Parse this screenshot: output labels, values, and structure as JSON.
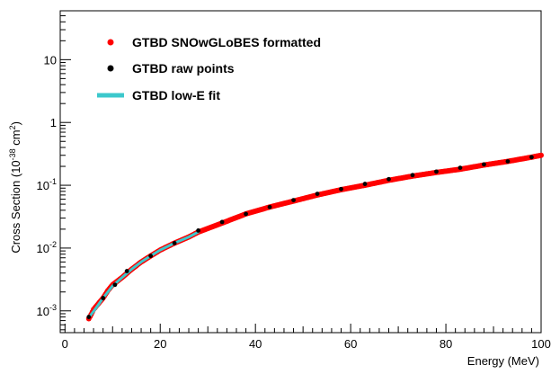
{
  "chart_data": {
    "type": "scatter",
    "title": "",
    "xlabel": "Energy (MeV)",
    "ylabel_parts": {
      "pre": "Cross Section (10",
      "exp": "-38",
      "mid": " cm",
      "exp2": "2",
      "post": ")"
    },
    "xlim": [
      -1,
      100
    ],
    "ylim": [
      0.00045,
      60
    ],
    "yscale": "log",
    "x_ticks": [
      0,
      20,
      40,
      60,
      80,
      100
    ],
    "y_ticks": [
      {
        "value": 0.001,
        "mantissa": "10",
        "exp": "-3"
      },
      {
        "value": 0.01,
        "mantissa": "10",
        "exp": "-2"
      },
      {
        "value": 0.1,
        "mantissa": "10",
        "exp": "-1"
      },
      {
        "value": 1,
        "mantissa": "1",
        "exp": ""
      },
      {
        "value": 10,
        "mantissa": "10",
        "exp": ""
      }
    ],
    "grid": false,
    "legend_position": "top-left",
    "legend": [
      {
        "label": "GTBD SNOwGLoBES formatted",
        "marker": "dot",
        "color": "#ff0000"
      },
      {
        "label": "GTBD raw points",
        "marker": "dot",
        "color": "#000000"
      },
      {
        "label": "GTBD low-E fit",
        "marker": "line",
        "color": "#3cc8cc"
      }
    ],
    "series": [
      {
        "name": "GTBD SNOwGLoBES formatted",
        "style": "dense-dots",
        "color": "#ff0000",
        "x": [
          5,
          5.5,
          6,
          7,
          8,
          9,
          10,
          12,
          14,
          16,
          18,
          20,
          23,
          26,
          28,
          33,
          38,
          43,
          48,
          53,
          58,
          63,
          68,
          73,
          78,
          83,
          88,
          93,
          98,
          100
        ],
        "y": [
          0.00075,
          0.00088,
          0.00105,
          0.0013,
          0.0016,
          0.0021,
          0.0026,
          0.0034,
          0.0046,
          0.006,
          0.0075,
          0.0093,
          0.012,
          0.015,
          0.018,
          0.025,
          0.035,
          0.045,
          0.056,
          0.07,
          0.085,
          0.1,
          0.12,
          0.14,
          0.16,
          0.18,
          0.21,
          0.24,
          0.28,
          0.3
        ]
      },
      {
        "name": "GTBD raw points",
        "style": "dots",
        "color": "#000000",
        "x": [
          5,
          8,
          10.5,
          13,
          18,
          23,
          28,
          33,
          38,
          43,
          48,
          53,
          58,
          63,
          68,
          73,
          78,
          83,
          88,
          93,
          98
        ],
        "y": [
          0.0008,
          0.0016,
          0.0026,
          0.0043,
          0.0075,
          0.012,
          0.019,
          0.026,
          0.035,
          0.045,
          0.058,
          0.073,
          0.087,
          0.105,
          0.125,
          0.145,
          0.165,
          0.19,
          0.215,
          0.24,
          0.28
        ]
      },
      {
        "name": "GTBD low-E fit",
        "style": "line",
        "color": "#3cc8cc",
        "x": [
          5,
          6,
          7,
          8,
          9,
          10,
          12,
          14,
          16,
          18,
          20,
          23,
          26,
          28
        ],
        "y": [
          0.00078,
          0.00098,
          0.00125,
          0.0016,
          0.002,
          0.0025,
          0.0034,
          0.0046,
          0.006,
          0.0075,
          0.0093,
          0.012,
          0.015,
          0.018
        ]
      }
    ]
  }
}
